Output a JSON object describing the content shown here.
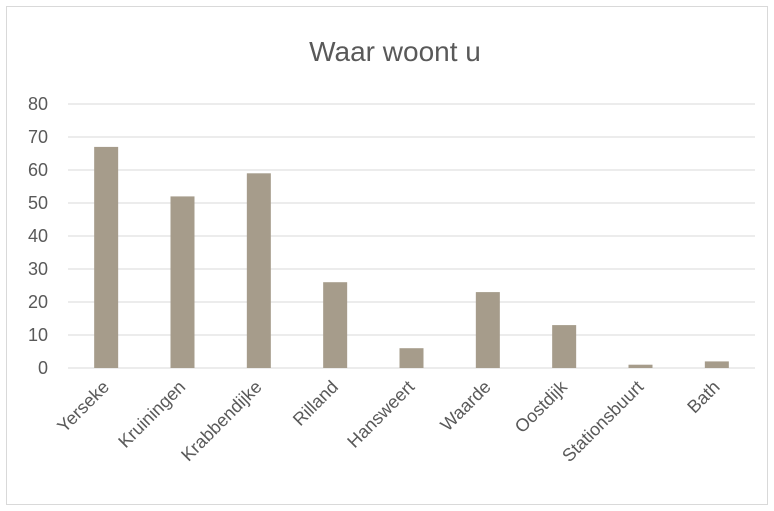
{
  "chart_data": {
    "type": "bar",
    "title": "Waar woont u",
    "xlabel": "",
    "ylabel": "",
    "categories": [
      "Yerseke",
      "Kruiningen",
      "Krabbendijke",
      "Rilland",
      "Hansweert",
      "Waarde",
      "Oostdijk",
      "Stationsbuurt",
      "Bath"
    ],
    "values": [
      67,
      52,
      59,
      26,
      6,
      23,
      13,
      1,
      2
    ],
    "ylim": [
      0,
      80
    ],
    "yticks": [
      "0",
      "10",
      "20",
      "30",
      "40",
      "50",
      "60",
      "70",
      "80"
    ],
    "grid": true,
    "legend": "none",
    "bar_color": "#a69c8b"
  }
}
